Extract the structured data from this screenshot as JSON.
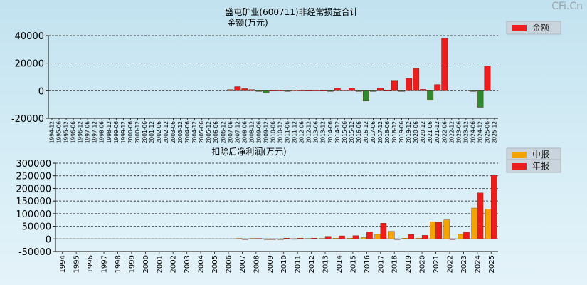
{
  "watermark": "CFi.Cn",
  "chart_data": [
    {
      "type": "bar",
      "title": "盛屯矿业(600711)非经常损益合计",
      "subtitle": "金额(万元)",
      "legend": [
        {
          "name": "金额",
          "color": "#ee1c1c",
          "neg_color": "#2e8b2e"
        }
      ],
      "legend_position": "top-right",
      "ylim": [
        -20000,
        40000
      ],
      "yticks": [
        -20000,
        0,
        20000,
        40000
      ],
      "categories": [
        "1994-12",
        "1995-06",
        "1995-12",
        "1996-06",
        "1996-12",
        "1997-06",
        "1997-12",
        "1998-06",
        "1998-12",
        "1999-06",
        "1999-12",
        "2000-06",
        "2000-12",
        "2001-06",
        "2001-12",
        "2002-06",
        "2002-12",
        "2003-06",
        "2003-12",
        "2004-06",
        "2004-12",
        "2005-06",
        "2005-12",
        "2006-06",
        "2006-12",
        "2007-06",
        "2007-12",
        "2008-06",
        "2008-12",
        "2009-06",
        "2009-12",
        "2010-06",
        "2010-12",
        "2011-06",
        "2011-12",
        "2012-06",
        "2012-12",
        "2013-06",
        "2013-12",
        "2014-06",
        "2014-12",
        "2015-06",
        "2015-12",
        "2016-06",
        "2016-12",
        "2017-06",
        "2017-12",
        "2018-06",
        "2018-12",
        "2019-06",
        "2019-12",
        "2020-06",
        "2020-12",
        "2021-06",
        "2021-12",
        "2022-06",
        "2022-12",
        "2023-06",
        "2023-12",
        "2024-06",
        "2024-12",
        "2025-06",
        "2025-12"
      ],
      "values": [
        0,
        0,
        0,
        0,
        0,
        0,
        0,
        0,
        0,
        0,
        0,
        0,
        0,
        0,
        0,
        0,
        0,
        0,
        0,
        0,
        0,
        0,
        0,
        0,
        0,
        800,
        3000,
        1500,
        800,
        -500,
        -1500,
        300,
        400,
        -300,
        500,
        400,
        300,
        400,
        300,
        -200,
        1800,
        500,
        1800,
        -300,
        -7500,
        -300,
        1800,
        300,
        7500,
        -200,
        9000,
        16000,
        1000,
        -7000,
        4500,
        38000,
        0,
        0,
        0,
        -300,
        -12000,
        18000,
        0
      ],
      "grid": true
    },
    {
      "type": "bar",
      "title": "扣除后净利润(万元)",
      "legend": [
        {
          "name": "中报",
          "color": "#f5a300"
        },
        {
          "name": "年报",
          "color": "#ee1c1c"
        }
      ],
      "legend_position": "top-right",
      "ylim": [
        -50000,
        300000
      ],
      "yticks": [
        -50000,
        0,
        50000,
        100000,
        150000,
        200000,
        250000,
        300000
      ],
      "categories": [
        "1994",
        "1995",
        "1996",
        "1997",
        "1998",
        "1999",
        "2000",
        "2001",
        "2002",
        "2003",
        "2004",
        "2005",
        "2006",
        "2007",
        "2008",
        "2009",
        "2010",
        "2011",
        "2012",
        "2013",
        "2014",
        "2015",
        "2016",
        "2017",
        "2018",
        "2019",
        "2020",
        "2021",
        "2022",
        "2023",
        "2024",
        "2025"
      ],
      "series": [
        {
          "name": "中报",
          "color": "#f5a300",
          "values": [
            0,
            0,
            0,
            0,
            0,
            0,
            0,
            0,
            0,
            0,
            0,
            0,
            0,
            2000,
            2000,
            -2000,
            -1000,
            1000,
            1500,
            2000,
            3000,
            3000,
            5000,
            18000,
            30000,
            3000,
            3000,
            68000,
            75000,
            18000,
            122000,
            118000
          ]
        },
        {
          "name": "年报",
          "color": "#ee1c1c",
          "values": [
            0,
            0,
            0,
            0,
            0,
            0,
            0,
            0,
            0,
            0,
            0,
            0,
            0,
            -2000,
            2000,
            -2000,
            3000,
            3000,
            3000,
            10000,
            12000,
            13000,
            28000,
            62000,
            -2000,
            17000,
            14000,
            65000,
            -3000,
            27000,
            182000,
            252000
          ]
        }
      ],
      "grid": true
    }
  ]
}
